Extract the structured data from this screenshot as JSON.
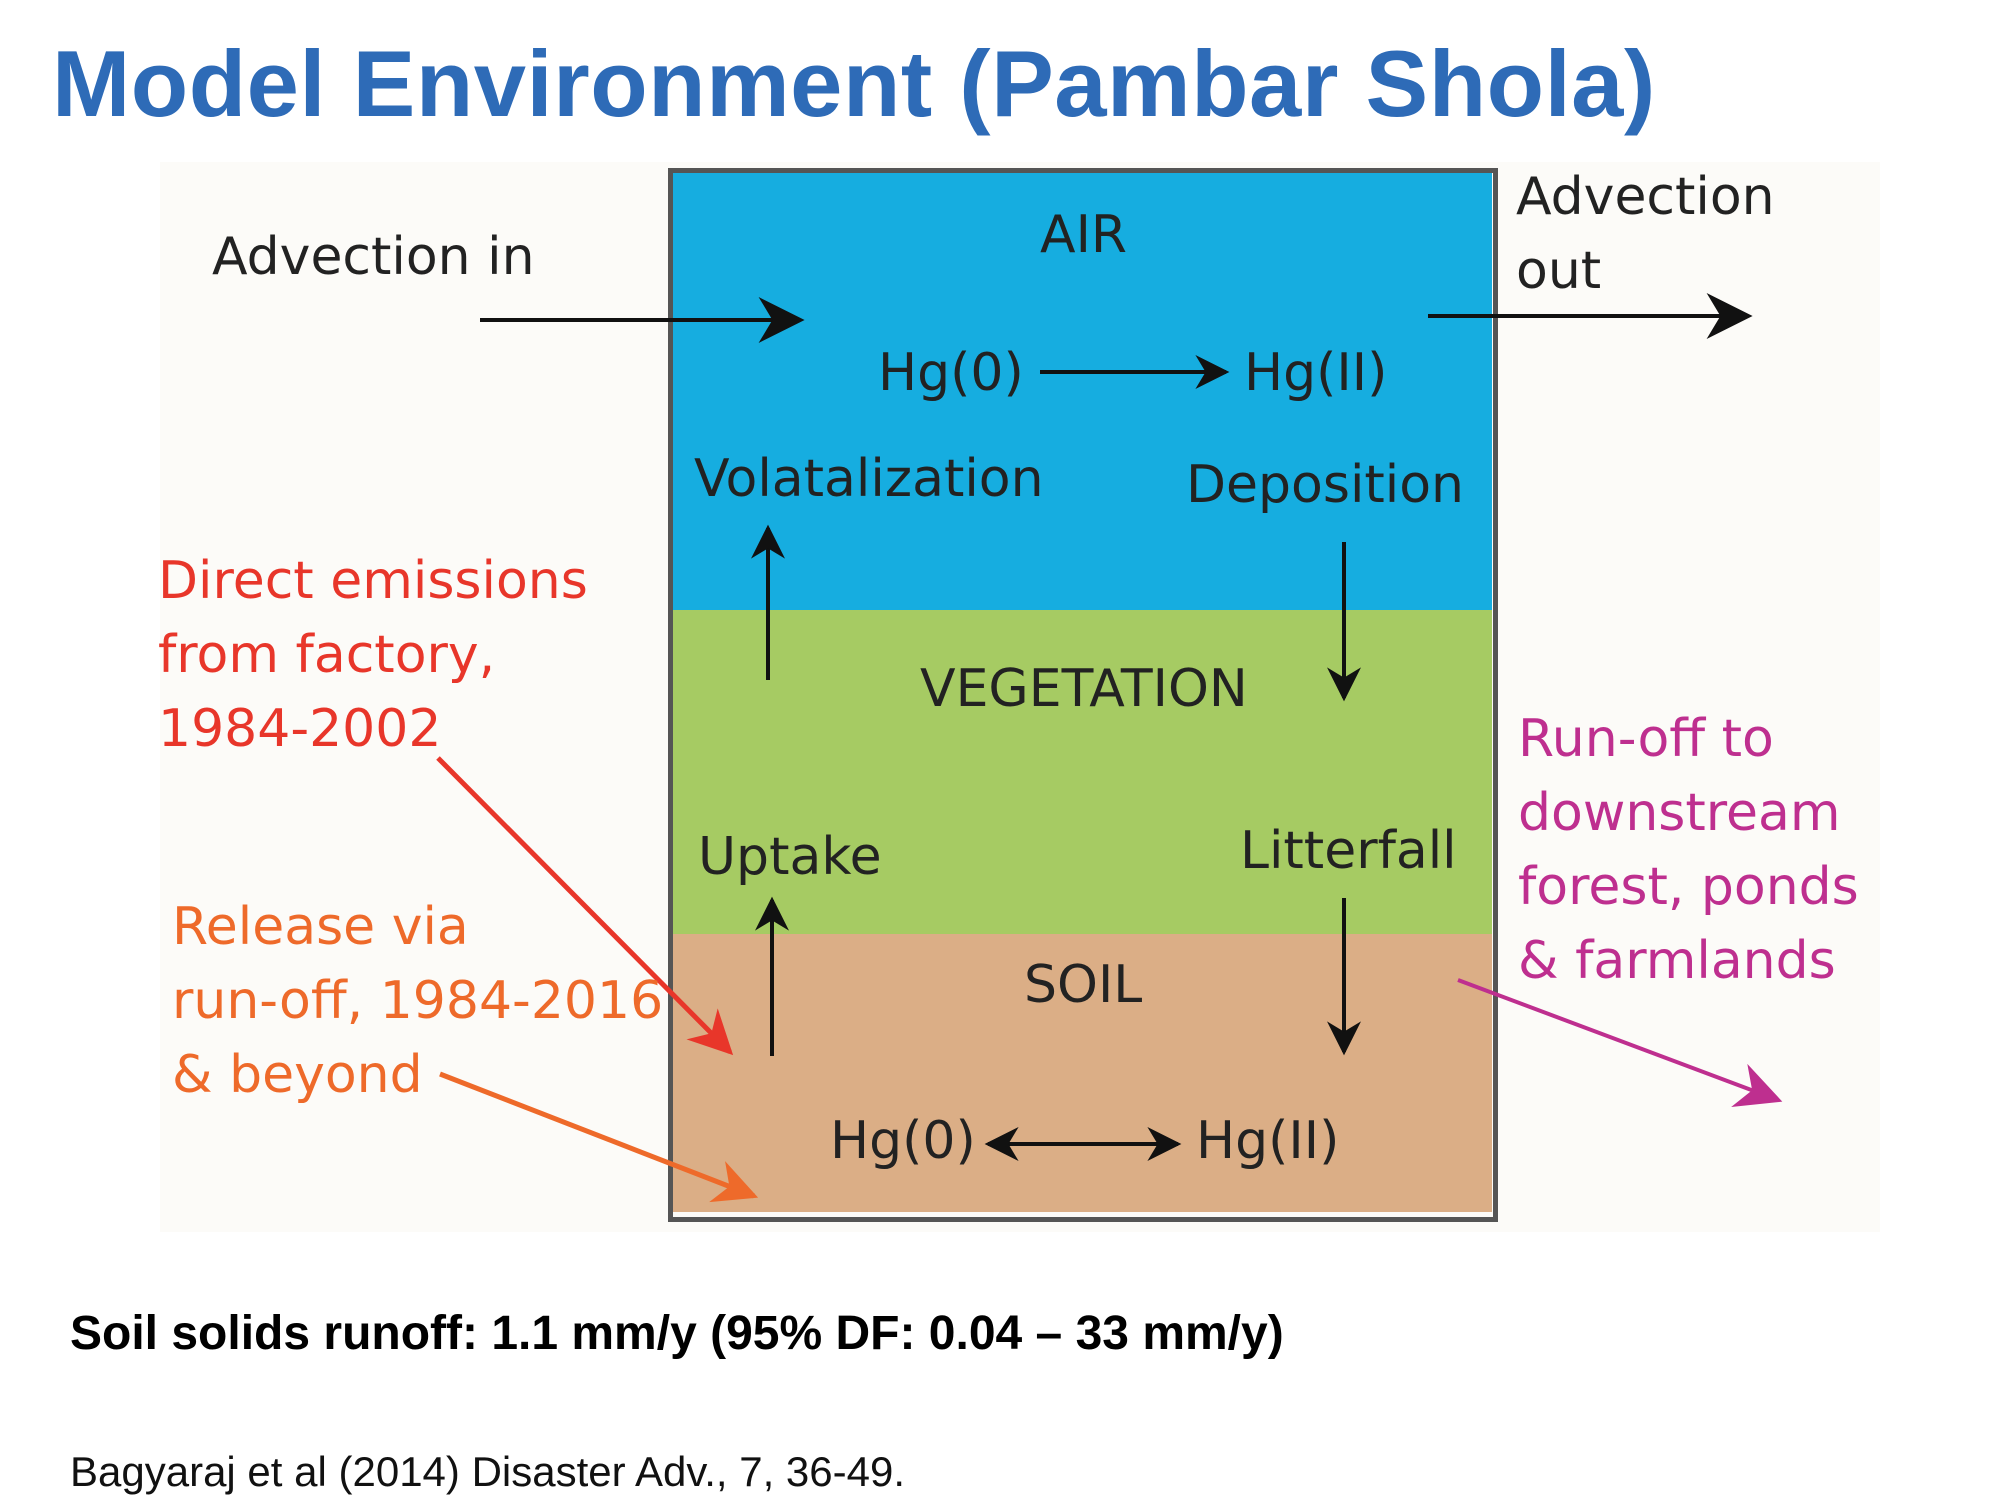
{
  "slide": {
    "title": "Model Environment (Pambar Shola)",
    "note": "Soil solids runoff: 1.1 mm/y (95% DF: 0.04 – 33 mm/y)",
    "citation": "Bagyaraj et al (2014) Disaster Adv., 7, 36-49."
  },
  "diagram": {
    "compartments": {
      "air": "AIR",
      "vegetation": "VEGETATION",
      "soil": "SOIL"
    },
    "labels": {
      "advection_in": "Advection in",
      "advection_out_line1": "Advection",
      "advection_out_line2": "out",
      "air_hg0": "Hg(0)",
      "air_hg2": "Hg(II)",
      "volatalization": "Volatalization",
      "deposition": "Deposition",
      "uptake": "Uptake",
      "litterfall": "Litterfall",
      "soil_hg0": "Hg(0)",
      "soil_hg2": "Hg(II)",
      "direct_line1": "Direct emissions",
      "direct_line2": "from factory,",
      "direct_line3": "1984-2002",
      "release_line1": "Release via",
      "release_line2": "run-off, 1984-2016",
      "release_line3": "& beyond",
      "runoff_line1": "Run-off to",
      "runoff_line2": "downstream",
      "runoff_line3": "forest,  ponds",
      "runoff_line4": "& farmlands"
    },
    "colors": {
      "title": "#2e6bb7",
      "air": "#16ade0",
      "vegetation": "#a6cb63",
      "soil": "#dbae86",
      "direct_emissions": "#e8362a",
      "release_runoff": "#ee6a2a",
      "downstream_runoff": "#be2f8f"
    }
  }
}
